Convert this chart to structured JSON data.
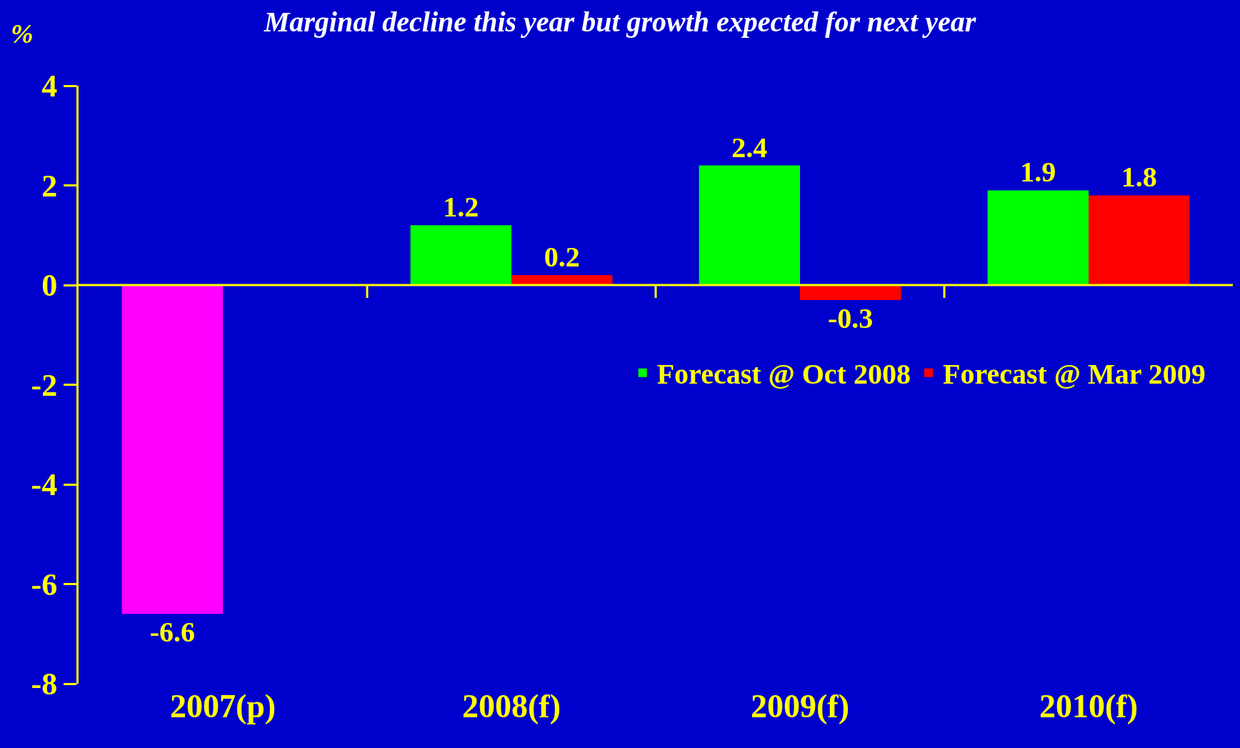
{
  "chart_data": {
    "type": "bar",
    "title": "Marginal decline this year but growth expected for next year",
    "ylabel": "%",
    "categories": [
      "2007(p)",
      "2008(f)",
      "2009(f)",
      "2010(f)"
    ],
    "series": [
      {
        "color": "#ff00ff",
        "values": [
          -6.6,
          null,
          null,
          null
        ]
      },
      {
        "name": "Forecast @ Oct 2008",
        "color": "#00ff00",
        "values": [
          null,
          1.2,
          2.4,
          1.9
        ]
      },
      {
        "name": "Forecast @ Mar 2009",
        "color": "#ff0000",
        "values": [
          null,
          0.2,
          -0.3,
          1.8
        ]
      }
    ],
    "ref_lines": [
      {
        "axis": "y",
        "value": 0,
        "color": "#ffff00"
      }
    ],
    "ylim": [
      -8,
      4
    ],
    "yticks": [
      -8,
      -6,
      -4,
      -2,
      0,
      2,
      4
    ],
    "grid": false,
    "legend": "right",
    "data_labels": true
  }
}
